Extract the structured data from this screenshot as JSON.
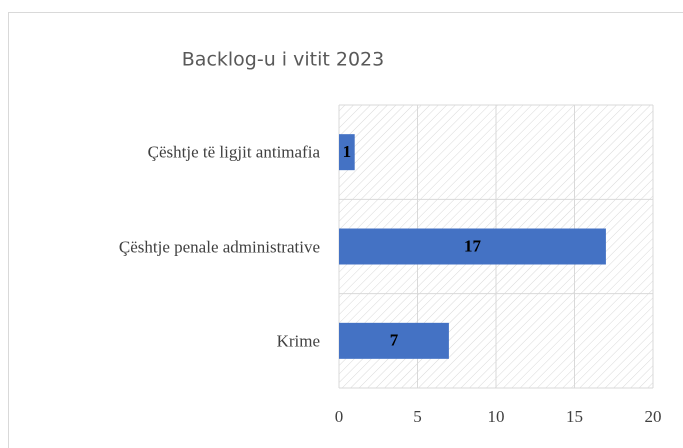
{
  "chart_data": {
    "type": "bar",
    "orientation": "horizontal",
    "title": "Backlog-u i vitit 2023",
    "categories": [
      "Çështje të ligjit antimafia",
      "Çështje penale administrative",
      "Krime"
    ],
    "values": [
      1,
      17,
      7
    ],
    "color": "#4472c4",
    "xlim": [
      0,
      20
    ],
    "xticks": [
      0,
      5,
      10,
      15,
      20
    ],
    "grid": true
  }
}
